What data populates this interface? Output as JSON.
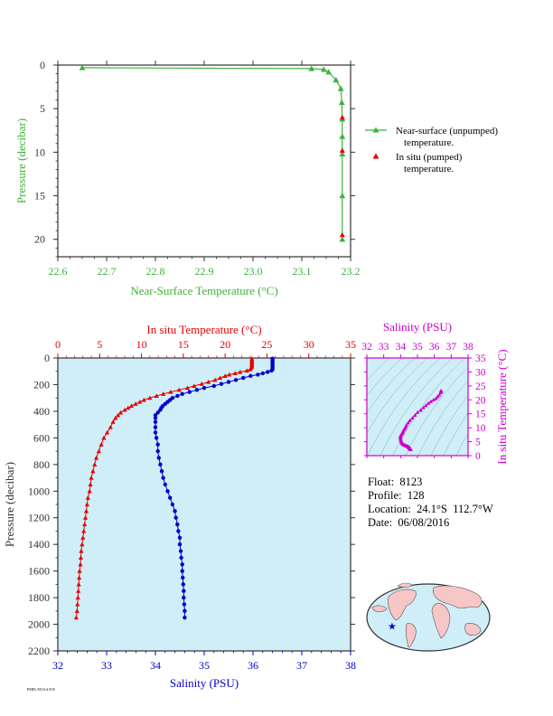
{
  "colors": {
    "green": "#3cb43c",
    "red": "#e60000",
    "blue": "#0000cc",
    "magenta": "#cc00cc",
    "panel_bg": "#cfeef8",
    "axis_dark": "#333333"
  },
  "float_info": {
    "float_label": "Float:",
    "float_value": "8123",
    "profile_label": "Profile:",
    "profile_value": "128",
    "location_label": "Location:",
    "location_lat": "24.1°S",
    "location_lon": "112.7°W",
    "date_label": "Date:",
    "date_value": "06/08/2016"
  },
  "legend": {
    "near_surface": "Near-surface (unpumped)",
    "near_surface_2": "temperature.",
    "in_situ": "In situ (pumped)",
    "in_situ_2": "temperature."
  },
  "footer_text": "PMEL/NOAA/UW",
  "chart_data": [
    {
      "id": "near-surface",
      "type": "line",
      "xlabel": "Near-Surface Temperature (°C)",
      "ylabel": "Pressure (decibar)",
      "xlim": [
        22.6,
        23.2
      ],
      "ylim": [
        0,
        22
      ],
      "y_inverted": true,
      "x_ticks": [
        "22.6",
        "22.7",
        "22.8",
        "22.9",
        "23.0",
        "23.1",
        "23.2"
      ],
      "y_ticks": [
        "0",
        "5",
        "10",
        "15",
        "20"
      ],
      "series": [
        {
          "name": "Near-surface (unpumped) temperature.",
          "x": [
            22.65,
            23.12,
            23.145,
            23.155,
            23.17,
            23.18,
            23.182,
            23.183,
            23.183,
            23.183,
            23.183,
            23.183
          ],
          "y": [
            0.3,
            0.4,
            0.5,
            0.8,
            1.7,
            2.7,
            4.3,
            6.2,
            8.2,
            10.2,
            15.0,
            20.0
          ]
        },
        {
          "name": "In situ (pumped) temperature.",
          "x": [
            23.183,
            23.183,
            23.183
          ],
          "y": [
            6.0,
            9.8,
            19.5
          ]
        }
      ]
    },
    {
      "id": "profile",
      "type": "line",
      "ylabel": "Pressure (decibar)",
      "ylim": [
        0,
        2200
      ],
      "y_inverted": true,
      "y_ticks": [
        "0",
        "200",
        "400",
        "600",
        "800",
        "1000",
        "1200",
        "1400",
        "1600",
        "1800",
        "2000",
        "2200"
      ],
      "temperature_axis": {
        "label": "In situ Temperature (°C)",
        "lim": [
          0,
          35
        ],
        "ticks": [
          "0",
          "5",
          "10",
          "15",
          "20",
          "25",
          "30",
          "35"
        ]
      },
      "salinity_axis": {
        "label": "Salinity (PSU)",
        "lim": [
          32,
          38
        ],
        "ticks": [
          "32",
          "33",
          "34",
          "35",
          "36",
          "37",
          "38"
        ]
      },
      "temperature": {
        "pressure": [
          5,
          15,
          25,
          35,
          45,
          55,
          65,
          75,
          85,
          95,
          105,
          115,
          125,
          135,
          150,
          165,
          180,
          195,
          210,
          225,
          240,
          255,
          270,
          285,
          300,
          315,
          330,
          345,
          360,
          375,
          390,
          410,
          430,
          450,
          480,
          520,
          560,
          600,
          650,
          700,
          750,
          800,
          850,
          900,
          950,
          1000,
          1050,
          1100,
          1150,
          1200,
          1250,
          1300,
          1350,
          1400,
          1450,
          1500,
          1550,
          1600,
          1650,
          1700,
          1750,
          1800,
          1850,
          1900,
          1950
        ],
        "values": [
          23.2,
          23.2,
          23.2,
          23.2,
          23.2,
          23.2,
          23.2,
          23.1,
          23.0,
          22.6,
          21.8,
          21.2,
          20.5,
          20.0,
          19.4,
          18.8,
          18.0,
          17.2,
          16.3,
          15.5,
          14.5,
          13.5,
          12.6,
          11.8,
          11.0,
          10.3,
          9.8,
          9.3,
          8.8,
          8.4,
          8.0,
          7.5,
          7.2,
          6.9,
          6.6,
          6.3,
          5.9,
          5.5,
          5.2,
          4.9,
          4.6,
          4.4,
          4.2,
          4.0,
          3.9,
          3.8,
          3.6,
          3.5,
          3.4,
          3.3,
          3.2,
          3.1,
          3.0,
          2.9,
          2.8,
          2.75,
          2.7,
          2.6,
          2.55,
          2.5,
          2.45,
          2.4,
          2.35,
          2.3,
          2.2
        ]
      },
      "salinity": {
        "pressure": [
          5,
          15,
          25,
          35,
          45,
          55,
          65,
          75,
          85,
          95,
          105,
          115,
          125,
          135,
          150,
          165,
          180,
          195,
          210,
          225,
          240,
          255,
          270,
          285,
          300,
          315,
          330,
          345,
          360,
          375,
          390,
          410,
          430,
          450,
          480,
          520,
          560,
          600,
          650,
          700,
          750,
          800,
          850,
          900,
          950,
          1000,
          1050,
          1100,
          1150,
          1200,
          1250,
          1300,
          1350,
          1400,
          1450,
          1500,
          1550,
          1600,
          1650,
          1700,
          1750,
          1800,
          1850,
          1900,
          1950
        ],
        "values": [
          36.4,
          36.4,
          36.4,
          36.4,
          36.4,
          36.4,
          36.4,
          36.4,
          36.4,
          36.38,
          36.3,
          36.2,
          36.1,
          35.95,
          35.8,
          35.65,
          35.5,
          35.35,
          35.2,
          35.0,
          34.85,
          34.7,
          34.55,
          34.45,
          34.35,
          34.3,
          34.25,
          34.2,
          34.15,
          34.12,
          34.1,
          34.05,
          34.0,
          34.0,
          34.0,
          34.0,
          34.0,
          34.02,
          34.05,
          34.05,
          34.07,
          34.1,
          34.13,
          34.16,
          34.2,
          34.25,
          34.3,
          34.35,
          34.4,
          34.42,
          34.45,
          34.47,
          34.5,
          34.5,
          34.52,
          34.53,
          34.55,
          34.55,
          34.56,
          34.57,
          34.58,
          34.58,
          34.59,
          34.6,
          34.6
        ]
      }
    },
    {
      "id": "ts-diagram",
      "type": "scatter",
      "xlabel": "Salinity (PSU)",
      "ylabel": "In situ Temperature (°C)",
      "xlim": [
        32,
        38
      ],
      "ylim": [
        0,
        35
      ],
      "x_ticks": [
        "32",
        "33",
        "34",
        "35",
        "36",
        "37",
        "38"
      ],
      "y_ticks": [
        "0",
        "5",
        "10",
        "15",
        "20",
        "25",
        "30",
        "35"
      ]
    },
    {
      "id": "location-map",
      "type": "map",
      "marker": {
        "lat": -24.1,
        "lon": -112.7
      }
    }
  ]
}
